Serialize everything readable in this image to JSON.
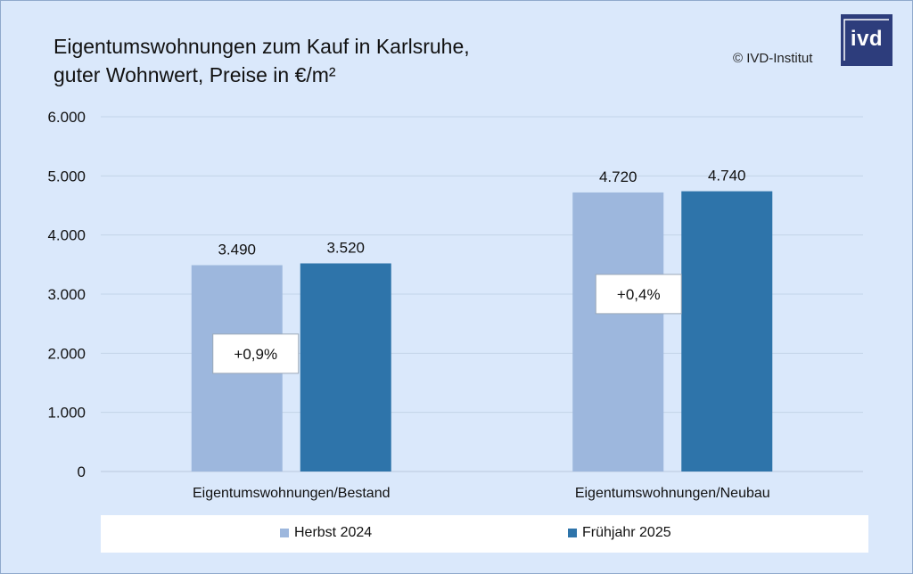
{
  "title_line1": "Eigentumswohnungen zum Kauf in Karlsruhe,",
  "title_line2": "guter Wohnwert, Preise in €/m²",
  "copyright": "© IVD-Institut",
  "logo_text": "ivd",
  "colors": {
    "background": "#dae8fb",
    "series1": "#9db7dd",
    "series2": "#2e74aa",
    "logo": "#2d3d7c",
    "grid": "#c3d3e8"
  },
  "chart_data": {
    "type": "bar",
    "categories": [
      "Eigentumswohnungen/Bestand",
      "Eigentumswohnungen/Neubau"
    ],
    "series": [
      {
        "name": "Herbst 2024",
        "values": [
          3490,
          4720
        ],
        "labels": [
          "3.490",
          "4.720"
        ]
      },
      {
        "name": "Frühjahr 2025",
        "values": [
          3520,
          4740
        ],
        "labels": [
          "3.520",
          "4.740"
        ]
      }
    ],
    "ylim": [
      0,
      6000
    ],
    "yticks": [
      "0",
      "1.000",
      "2.000",
      "3.000",
      "4.000",
      "5.000",
      "6.000"
    ],
    "ytick_values": [
      0,
      1000,
      2000,
      3000,
      4000,
      5000,
      6000
    ],
    "annotations": [
      "+0,9%",
      "+0,4%"
    ],
    "grid": true,
    "legend_position": "bottom"
  }
}
